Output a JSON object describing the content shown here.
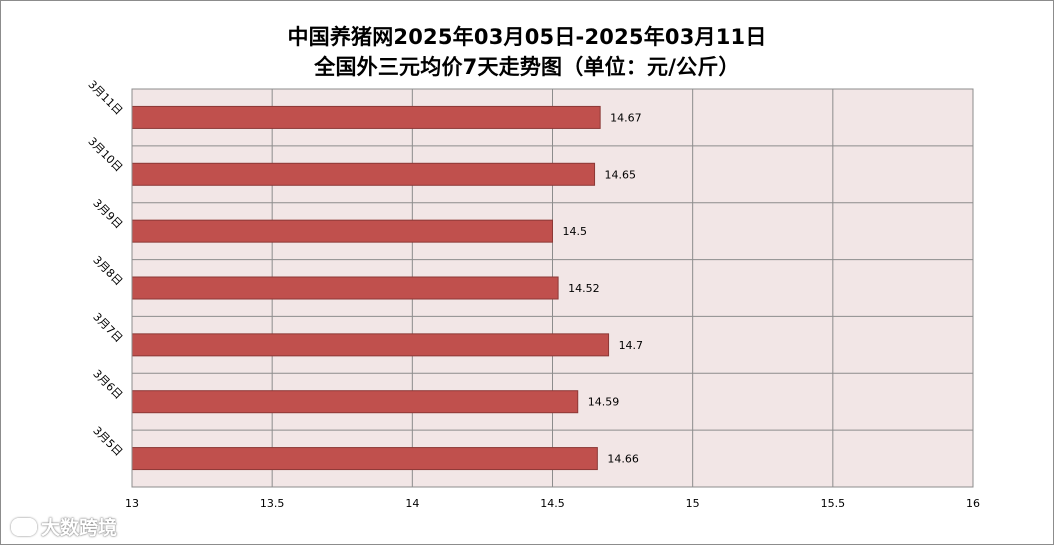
{
  "chart_data": {
    "type": "bar",
    "orientation": "horizontal",
    "title": "中国养猪网2025年03月05日-2025年03月11日",
    "subtitle": "全国外三元均价7天走势图（单位：元/公斤）",
    "categories": [
      "3月11日",
      "3月10日",
      "3月9日",
      "3月8日",
      "3月7日",
      "3月6日",
      "3月5日"
    ],
    "values": [
      14.67,
      14.65,
      14.5,
      14.52,
      14.7,
      14.59,
      14.66
    ],
    "value_labels": [
      "14.67",
      "14.65",
      "14.5",
      "14.52",
      "14.7",
      "14.59",
      "14.66"
    ],
    "xlim": [
      13,
      16
    ],
    "x_ticks": [
      13,
      13.5,
      14,
      14.5,
      15,
      15.5,
      16
    ],
    "x_tick_labels": [
      "13",
      "13.5",
      "14",
      "14.5",
      "15",
      "15.5",
      "16"
    ],
    "xlabel": "",
    "ylabel": "",
    "grid": true,
    "legend": "none",
    "colors": {
      "bar_fill": "#c0504d",
      "bar_stroke": "#8c3836",
      "plot_background": "#f2e6e6",
      "gridline": "#8c8c8c"
    }
  },
  "watermark": {
    "text": "大数跨境"
  }
}
